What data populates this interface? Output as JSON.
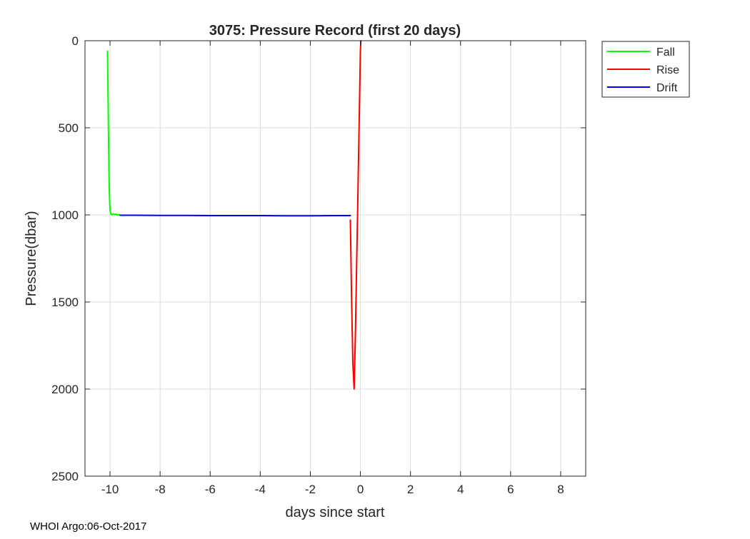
{
  "chart_data": {
    "type": "line",
    "title": "3075: Pressure Record (first 20 days)",
    "xlabel": "days since start",
    "ylabel": "Pressure(dbar)",
    "xlim": [
      -11,
      9
    ],
    "ylim": [
      0,
      2500
    ],
    "y_reversed": true,
    "grid": true,
    "x_ticks": [
      -10,
      -8,
      -6,
      -4,
      -2,
      0,
      2,
      4,
      6,
      8
    ],
    "y_ticks": [
      0,
      500,
      1000,
      1500,
      2000,
      2500
    ],
    "legend_position": "outside-top-right",
    "series": [
      {
        "name": "Fall",
        "color": "#00ff00",
        "x": [
          -10.1,
          -10.08,
          -10.06,
          -10.04,
          -10.02,
          -10.0,
          -9.97,
          -9.93,
          -9.88,
          -9.82,
          -9.76,
          -9.7,
          -9.65,
          -9.6
        ],
        "y": [
          60,
          300,
          550,
          760,
          900,
          975,
          995,
          1000,
          995,
          998,
          995,
          1002,
          998,
          1002
        ]
      },
      {
        "name": "Rise",
        "color": "#ff0000",
        "x": [
          -0.4,
          -0.35,
          -0.3,
          -0.25,
          -0.2,
          -0.1,
          0.0,
          0.02
        ],
        "y": [
          1030,
          1500,
          1850,
          2000,
          1700,
          900,
          50,
          0
        ]
      },
      {
        "name": "Drift",
        "color": "#0000ff",
        "x": [
          -9.6,
          -9.0,
          -8.0,
          -7.0,
          -6.0,
          -5.0,
          -4.0,
          -3.0,
          -2.0,
          -1.0,
          -0.4
        ],
        "y": [
          1002,
          1002,
          1003,
          1003,
          1004,
          1004,
          1004,
          1005,
          1005,
          1004,
          1004
        ]
      }
    ]
  },
  "footer": {
    "text": "WHOI Argo:06-Oct-2017"
  }
}
